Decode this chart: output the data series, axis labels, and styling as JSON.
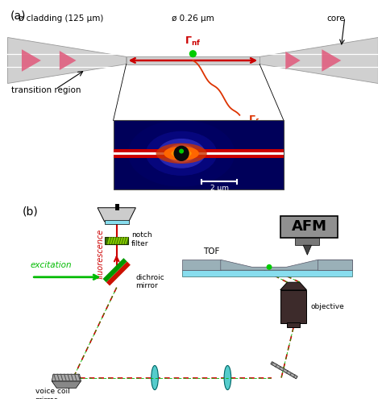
{
  "fig_width": 4.74,
  "fig_height": 4.95,
  "dpi": 100,
  "bg_color": "#ffffff",
  "label_a": "(a)",
  "label_b": "(b)",
  "text_cladding": "ø cladding (125 μm)",
  "text_core": "core",
  "text_transition": "transition region",
  "text_diameter": "ø 0.26 μm",
  "text_scale": "2 μm",
  "text_notch": "notch\nfilter",
  "text_dichroic": "dichroic\nmirror",
  "text_fluorescence": "fluorescence",
  "text_excitation": "excitation",
  "text_voicecoil": "voice coil\nmirror",
  "text_afm": "AFM",
  "text_tof": "TOF",
  "text_objective": "objective",
  "colors": {
    "fiber_gray": "#d0d0d0",
    "fiber_edge": "#999999",
    "pink": "#e06080",
    "red": "#cc0000",
    "orange_red": "#dd3300",
    "green": "#00cc00",
    "cyan": "#55cccc",
    "tof_gray": "#9ab0b8",
    "tof_light": "#aaccdd",
    "afm_gray": "#909090",
    "objective_dark": "#3d2b2b",
    "mirror_gray": "#888888",
    "black": "#000000",
    "white": "#ffffff",
    "blue_bg": "#00007a",
    "notch_green": "#4a8a00",
    "beam_red": "#cc0000",
    "beam_green": "#00bb00"
  }
}
